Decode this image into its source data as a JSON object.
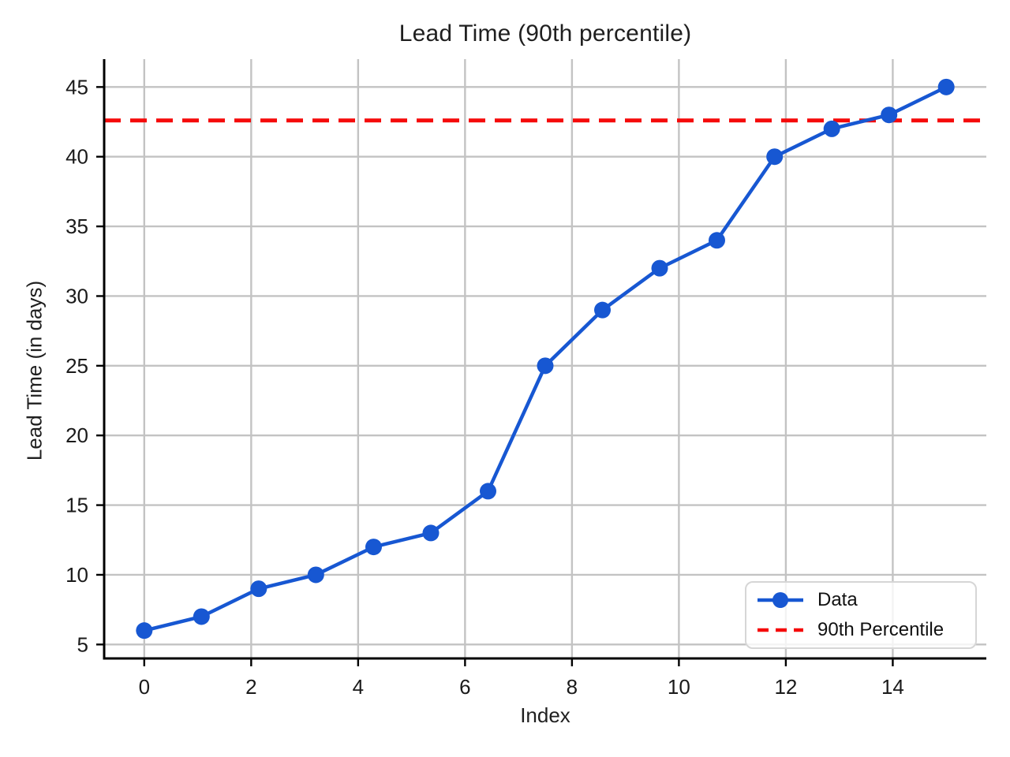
{
  "chart_data": {
    "type": "line",
    "title": "Lead Time (90th percentile)",
    "xlabel": "Index",
    "ylabel": "Lead Time (in days)",
    "x": [
      0,
      1.07,
      2.14,
      3.21,
      4.29,
      5.36,
      6.43,
      7.5,
      8.57,
      9.64,
      10.71,
      11.79,
      12.86,
      13.93,
      15
    ],
    "series": [
      {
        "name": "Data",
        "values": [
          6,
          7,
          9,
          10,
          12,
          13,
          16,
          25,
          29,
          32,
          34,
          40,
          42,
          43,
          45
        ],
        "color": "#1757d2",
        "marker": "circle",
        "line_style": "solid"
      }
    ],
    "reference_lines": [
      {
        "name": "90th Percentile",
        "value": 42.6,
        "orientation": "horizontal",
        "color": "#f50a0a",
        "line_style": "dashed"
      }
    ],
    "xticks": [
      0,
      2,
      4,
      6,
      8,
      10,
      12,
      14
    ],
    "yticks": [
      5,
      10,
      15,
      20,
      25,
      30,
      35,
      40,
      45
    ],
    "xlim": [
      -0.75,
      15.75
    ],
    "ylim": [
      4,
      47
    ],
    "grid": true,
    "legend_position": "lower right",
    "legend": {
      "items": [
        {
          "label": "Data"
        },
        {
          "label": "90th Percentile"
        }
      ]
    },
    "colors": {
      "grid": "#c3c3c3",
      "spine": "#000000",
      "text": "#1a1a1a",
      "background": "#ffffff"
    }
  }
}
